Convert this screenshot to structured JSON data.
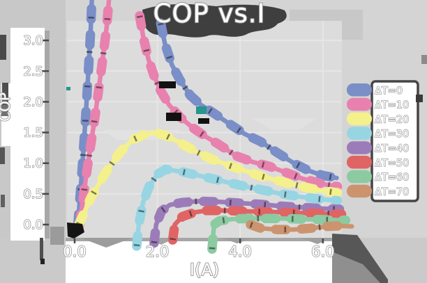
{
  "chart_data": {
    "type": "line",
    "title": "COP vs.I",
    "xlabel": "I(A)",
    "ylabel": "COP",
    "xlim": [
      -0.2,
      6.9
    ],
    "ylim": [
      0,
      3.3
    ],
    "grid": true,
    "legend_position": "right",
    "x_ticks": {
      "values": [
        0,
        2,
        4,
        6
      ],
      "labels": [
        "0.0",
        "2.0",
        "4.0",
        "6.0"
      ]
    },
    "y_ticks": {
      "values": [
        0,
        0.5,
        1,
        1.5,
        2,
        2.5,
        3
      ],
      "labels": [
        "0.0",
        "0.5",
        "1.0",
        "1.5",
        "2.0",
        "2.5",
        "3.0"
      ]
    },
    "series": [
      {
        "label": "ΔT=0",
        "color": "#7a8ec7",
        "segments": [
          {
            "x": [
              0.08,
              0.18,
              0.27,
              0.34,
              0.39,
              0.42
            ],
            "y": [
              0,
              0.9,
              1.8,
              2.6,
              3.2,
              3.75
            ]
          },
          {
            "x": [
              2.08,
              2.18,
              2.35,
              2.55,
              2.8,
              3.05,
              3.35,
              3.7,
              4.1,
              4.5,
              4.9,
              5.3,
              5.65,
              6.0,
              6.33
            ],
            "y": [
              3.28,
              2.95,
              2.6,
              2.35,
              2.1,
              1.95,
              1.82,
              1.66,
              1.48,
              1.35,
              1.17,
              1.0,
              0.88,
              0.8,
              0.76
            ]
          }
        ]
      },
      {
        "label": "ΔT=10",
        "color": "#e881ae",
        "segments": [
          {
            "x": [
              0.12,
              0.3,
              0.5,
              0.66,
              0.77,
              0.84
            ],
            "y": [
              0,
              0.9,
              1.8,
              2.6,
              3.2,
              3.75
            ]
          },
          {
            "x": [
              1.57,
              1.66,
              1.78,
              1.92,
              2.08,
              2.28,
              2.55,
              2.85,
              3.15,
              3.5,
              3.9,
              4.3,
              4.7,
              5.1,
              5.5,
              6.0,
              6.35
            ],
            "y": [
              3.4,
              3.05,
              2.7,
              2.42,
              2.18,
              1.95,
              1.75,
              1.58,
              1.44,
              1.3,
              1.12,
              1.02,
              0.95,
              0.85,
              0.75,
              0.66,
              0.62
            ]
          }
        ]
      },
      {
        "label": "ΔT=20",
        "color": "#f4f08c",
        "segments": [
          {
            "x": [
              0.1,
              0.4,
              0.8,
              1.1,
              1.4,
              1.7,
              1.95,
              2.2,
              2.5,
              2.9,
              3.3,
              3.7,
              4.1,
              4.5,
              5.0,
              5.5,
              6.0,
              6.35
            ],
            "y": [
              0,
              0.45,
              0.9,
              1.18,
              1.38,
              1.47,
              1.5,
              1.45,
              1.35,
              1.2,
              1.07,
              0.97,
              0.88,
              0.79,
              0.7,
              0.62,
              0.55,
              0.52
            ]
          }
        ]
      },
      {
        "label": "ΔT=30",
        "color": "#97d5e3",
        "segments": [
          {
            "x": [
              1.5,
              1.55,
              1.65,
              1.8,
              2.0,
              2.2,
              2.6,
              3.0,
              3.5,
              4.0,
              4.5,
              5.0,
              5.5,
              6.0,
              6.35
            ],
            "y": [
              -0.35,
              0,
              0.35,
              0.62,
              0.82,
              0.9,
              0.86,
              0.8,
              0.72,
              0.64,
              0.57,
              0.5,
              0.45,
              0.41,
              0.39
            ]
          }
        ]
      },
      {
        "label": "ΔT=40",
        "color": "#9b7cb8",
        "segments": [
          {
            "x": [
              1.92,
              1.97,
              2.1,
              2.3,
              2.6,
              3.0,
              3.5,
              4.0,
              4.5,
              5.0,
              5.5,
              6.0,
              6.4
            ],
            "y": [
              -0.3,
              0,
              0.22,
              0.32,
              0.36,
              0.38,
              0.37,
              0.35,
              0.33,
              0.3,
              0.28,
              0.26,
              0.25
            ]
          }
        ]
      },
      {
        "label": "ΔT=50",
        "color": "#e06464",
        "segments": [
          {
            "x": [
              2.37,
              2.42,
              2.6,
              2.9,
              3.2,
              3.6,
              4.0,
              4.5,
              5.0,
              5.5,
              6.0,
              6.45
            ],
            "y": [
              -0.25,
              0,
              0.13,
              0.2,
              0.23,
              0.23,
              0.22,
              0.21,
              0.2,
              0.19,
              0.18,
              0.17
            ]
          }
        ]
      },
      {
        "label": "ΔT=60",
        "color": "#8ccaa2",
        "segments": [
          {
            "x": [
              3.32,
              3.37,
              3.5,
              3.8,
              4.2,
              4.6,
              5.0,
              5.5,
              6.0,
              6.55
            ],
            "y": [
              -0.4,
              0,
              0.06,
              0.09,
              0.1,
              0.1,
              0.1,
              0.09,
              0.08,
              0.07
            ]
          }
        ]
      },
      {
        "label": "ΔT=70",
        "color": "#cb946f",
        "segments": [
          {
            "x": [
              4.25,
              4.5,
              4.9,
              5.3,
              5.7,
              6.1,
              6.4,
              6.7
            ],
            "y": [
              0.0,
              -0.06,
              -0.08,
              -0.08,
              -0.06,
              -0.03,
              -0.02,
              -0.03
            ]
          }
        ]
      }
    ]
  }
}
